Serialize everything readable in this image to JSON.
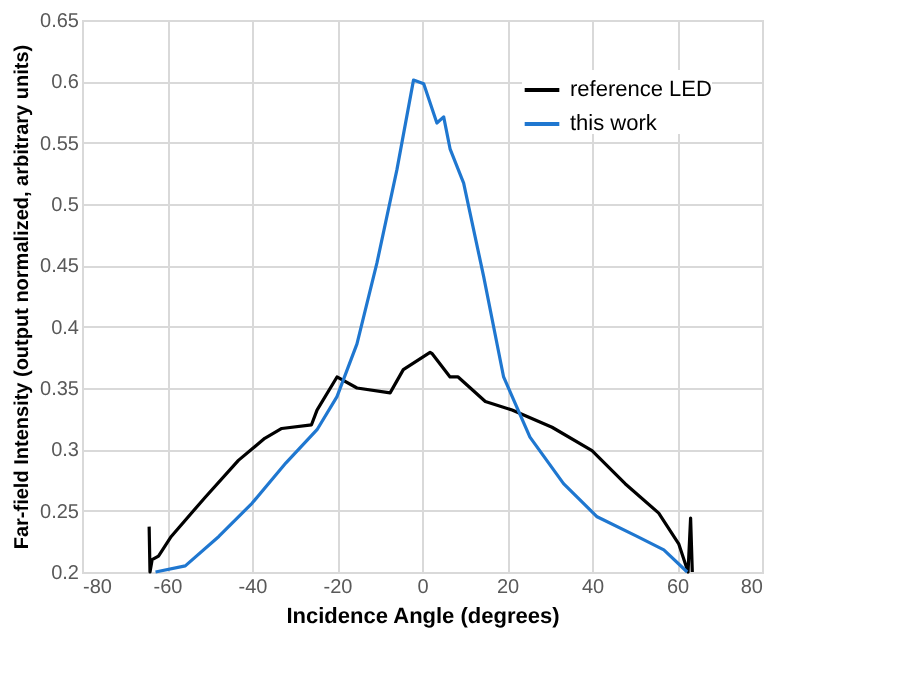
{
  "chart_data": {
    "type": "line",
    "xlabel": "Incidence Angle (degrees)",
    "ylabel": "Far-field Intensity (output normalized, arbitrary units)",
    "xlim": [
      -80,
      80
    ],
    "xticks": [
      -80,
      -60,
      -40,
      -20,
      0,
      20,
      40,
      60,
      80
    ],
    "ylim": [
      0.2,
      0.65
    ],
    "yticks": [
      0.2,
      0.25,
      0.3,
      0.35,
      0.4,
      0.45,
      0.5,
      0.55,
      0.6,
      0.65
    ],
    "grid": true,
    "legend": "top right",
    "line_style": "solid",
    "marker": "none",
    "series": [
      {
        "name": "reference LED",
        "color": "#000000",
        "x": [
          -64.2,
          -64,
          -63.5,
          -62,
          -59,
          -51,
          -43.2,
          -37,
          -33,
          -26,
          -24.7,
          -20,
          -15.3,
          -7.5,
          -4.4,
          1.9,
          2.4,
          6.6,
          8.5,
          14.9,
          21.2,
          30.6,
          40,
          47.8,
          55.7,
          60.4,
          62.6,
          63.2,
          63.6
        ],
        "values": [
          0.237,
          0.2,
          0.21,
          0.213,
          0.229,
          0.261,
          0.291,
          0.309,
          0.317,
          0.32,
          0.332,
          0.359,
          0.35,
          0.346,
          0.365,
          0.379,
          0.378,
          0.359,
          0.359,
          0.339,
          0.332,
          0.318,
          0.299,
          0.272,
          0.248,
          0.223,
          0.2,
          0.244,
          0.2
        ]
      },
      {
        "name": "this work",
        "color": "#1f77d0",
        "x": [
          -62.7,
          -55.7,
          -47.8,
          -40,
          -32,
          -24.7,
          -20,
          -15.3,
          -10.6,
          -5.9,
          -2,
          0.4,
          3.5,
          5.1,
          6.6,
          9.8,
          14.5,
          19.2,
          25.4,
          33.3,
          41.2,
          50.6,
          56.9,
          62.4
        ],
        "values": [
          0.2,
          0.205,
          0.229,
          0.256,
          0.289,
          0.316,
          0.343,
          0.386,
          0.452,
          0.528,
          0.601,
          0.598,
          0.566,
          0.571,
          0.545,
          0.517,
          0.441,
          0.359,
          0.31,
          0.272,
          0.245,
          0.229,
          0.218,
          0.2
        ]
      }
    ]
  }
}
